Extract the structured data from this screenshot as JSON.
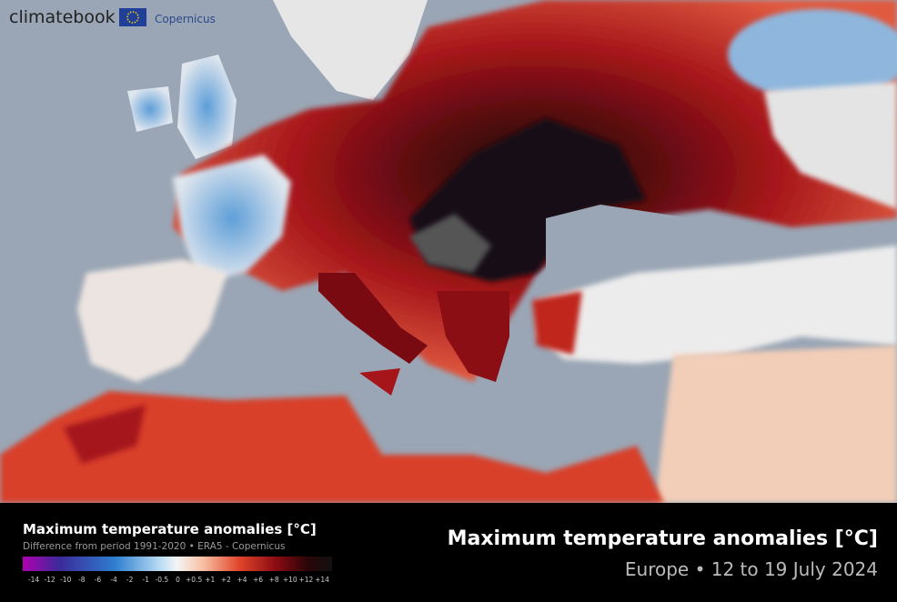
{
  "logo": {
    "brand": "climatebook",
    "partner": "Copernicus"
  },
  "legend": {
    "title": "Maximum temperature anomalies [°C]",
    "subtitle": "Difference from period 1991-2020 • ERA5 - Copernicus",
    "labels": [
      "-14",
      "-12",
      "-10",
      "-8",
      "-6",
      "-4",
      "-2",
      "-1",
      "-0.5",
      "0",
      "+0.5",
      "+1",
      "+2",
      "+4",
      "+6",
      "+8",
      "+10",
      "+12",
      "+14"
    ]
  },
  "header": {
    "title": "Maximum temperature anomalies [°C]",
    "subtitle": "Europe • 12 to 19 July 2024"
  }
}
